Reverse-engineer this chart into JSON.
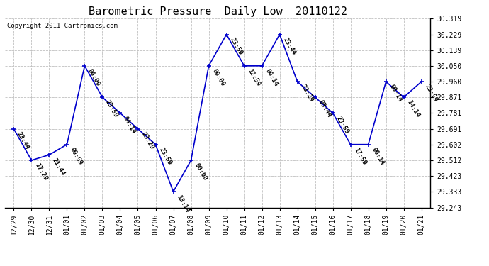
{
  "title": "Barometric Pressure  Daily Low  20110122",
  "copyright": "Copyright 2011 Cartronics.com",
  "x_labels": [
    "12/29",
    "12/30",
    "12/31",
    "01/01",
    "01/02",
    "01/03",
    "01/04",
    "01/05",
    "01/06",
    "01/07",
    "01/08",
    "01/09",
    "01/10",
    "01/11",
    "01/12",
    "01/13",
    "01/14",
    "01/15",
    "01/16",
    "01/17",
    "01/18",
    "01/19",
    "01/20",
    "01/21"
  ],
  "y_values": [
    29.691,
    29.512,
    29.543,
    29.602,
    30.05,
    29.871,
    29.781,
    29.691,
    29.602,
    29.333,
    29.512,
    30.05,
    30.229,
    30.05,
    30.05,
    30.229,
    29.96,
    29.871,
    29.781,
    29.602,
    29.602,
    29.96,
    29.871,
    29.96
  ],
  "point_labels": [
    "23:44",
    "17:29",
    "21:44",
    "00:59",
    "00:00",
    "23:59",
    "04:14",
    "23:29",
    "23:59",
    "13:14",
    "00:00",
    "00:00",
    "23:59",
    "12:59",
    "00:14",
    "23:44",
    "23:29",
    "03:44",
    "23:59",
    "17:59",
    "00:14",
    "00:14",
    "14:14",
    "23:59"
  ],
  "y_ticks": [
    29.243,
    29.333,
    29.423,
    29.512,
    29.602,
    29.691,
    29.781,
    29.871,
    29.96,
    30.05,
    30.139,
    30.229,
    30.319
  ],
  "ylim": [
    29.243,
    30.319
  ],
  "line_color": "#0000cc",
  "marker_color": "#0000cc",
  "grid_color": "#c0c0c0",
  "bg_color": "#ffffff",
  "title_fontsize": 11,
  "tick_fontsize": 7,
  "annotation_fontsize": 6.5
}
